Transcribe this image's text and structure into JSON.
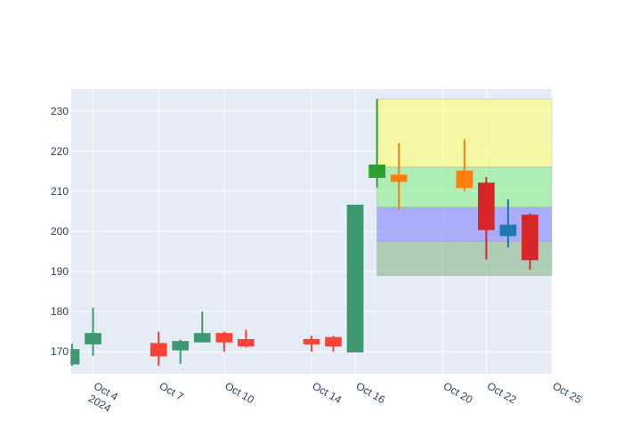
{
  "chart_data": {
    "type": "candlestick",
    "title": "",
    "xlabel": "",
    "ylabel": "",
    "grid": true,
    "legend": "none",
    "x_date_range": [
      "2024-10-03",
      "2024-10-25"
    ],
    "ylim": [
      164.5,
      235.5
    ],
    "y_ticks": [
      170,
      180,
      190,
      200,
      210,
      220,
      230
    ],
    "y_tick_labels": [
      "170",
      "180",
      "190",
      "200",
      "210",
      "220",
      "230"
    ],
    "x_ticks": [
      {
        "date": "2024-10-04",
        "label": "Oct 4",
        "sublabel": "2024"
      },
      {
        "date": "2024-10-07",
        "label": "Oct 7"
      },
      {
        "date": "2024-10-10",
        "label": "Oct 10"
      },
      {
        "date": "2024-10-14",
        "label": "Oct 14"
      },
      {
        "date": "2024-10-16",
        "label": "Oct 16"
      },
      {
        "date": "2024-10-20",
        "label": "Oct 20"
      },
      {
        "date": "2024-10-22",
        "label": "Oct 22"
      },
      {
        "date": "2024-10-25",
        "label": "Oct 25"
      }
    ],
    "shaded_bands": [
      {
        "x_start": "2024-10-17",
        "x_end": "2024-10-25",
        "y_low": 216,
        "y_high": 233,
        "color": "#ffff7a"
      },
      {
        "x_start": "2024-10-17",
        "x_end": "2024-10-25",
        "y_low": 206,
        "y_high": 216,
        "color": "#90ee90"
      },
      {
        "x_start": "2024-10-17",
        "x_end": "2024-10-25",
        "y_low": 197.5,
        "y_high": 206,
        "color": "#8a8aff"
      },
      {
        "x_start": "2024-10-17",
        "x_end": "2024-10-25",
        "y_low": 189,
        "y_high": 197.5,
        "color": "#8fbc8f"
      }
    ],
    "candles": [
      {
        "date": "2024-10-03",
        "open": 167,
        "high": 172,
        "low": 166.5,
        "close": 170.5,
        "color": "#3d9970"
      },
      {
        "date": "2024-10-04",
        "open": 172,
        "high": 181,
        "low": 169,
        "close": 174.5,
        "color": "#3d9970"
      },
      {
        "date": "2024-10-07",
        "open": 172,
        "high": 175,
        "low": 166.5,
        "close": 169,
        "color": "#ff4136"
      },
      {
        "date": "2024-10-08",
        "open": 170.5,
        "high": 173,
        "low": 167,
        "close": 172.5,
        "color": "#3d9970"
      },
      {
        "date": "2024-10-09",
        "open": 172.5,
        "high": 180,
        "low": 172.5,
        "close": 174.5,
        "color": "#3d9970"
      },
      {
        "date": "2024-10-10",
        "open": 174.5,
        "high": 175,
        "low": 170,
        "close": 172.5,
        "color": "#ff4136"
      },
      {
        "date": "2024-10-11",
        "open": 173,
        "high": 175.5,
        "low": 171,
        "close": 171.5,
        "color": "#ff4136"
      },
      {
        "date": "2024-10-14",
        "open": 173,
        "high": 174,
        "low": 170,
        "close": 172,
        "color": "#ff4136"
      },
      {
        "date": "2024-10-15",
        "open": 173.5,
        "high": 174,
        "low": 170,
        "close": 171.5,
        "color": "#ff4136"
      },
      {
        "date": "2024-10-16",
        "open": 170,
        "high": 206.5,
        "low": 170,
        "close": 206.5,
        "color": "#3d9970"
      },
      {
        "date": "2024-10-17",
        "open": 213.5,
        "high": 233,
        "low": 211,
        "close": 216.5,
        "color": "#2ca02c"
      },
      {
        "date": "2024-10-18",
        "open": 214,
        "high": 222,
        "low": 205.5,
        "close": 212.5,
        "color": "#ff7f0e"
      },
      {
        "date": "2024-10-21",
        "open": 215,
        "high": 223,
        "low": 210,
        "close": 211,
        "color": "#ff7f0e"
      },
      {
        "date": "2024-10-22",
        "open": 212,
        "high": 213.5,
        "low": 193,
        "close": 200.5,
        "color": "#d62728"
      },
      {
        "date": "2024-10-23",
        "open": 199,
        "high": 208,
        "low": 196,
        "close": 201.5,
        "color": "#1f77b4"
      },
      {
        "date": "2024-10-24",
        "open": 204,
        "high": 204.5,
        "low": 190.5,
        "close": 193,
        "color": "#d62728"
      }
    ]
  }
}
